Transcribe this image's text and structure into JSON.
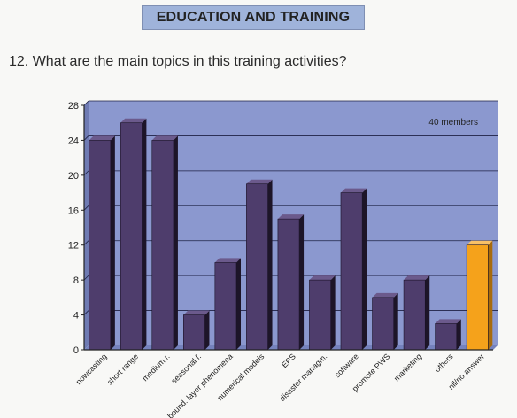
{
  "header": {
    "title": "EDUCATION AND TRAINING"
  },
  "question": "12. What are the main topics in this training activities?",
  "colors": {
    "plot_background": "#8b98cf",
    "bar_fill": "#4e3d6c",
    "highlight_fill": "#f5a21b",
    "header_background": "#9fb3da"
  },
  "chart_data": {
    "type": "bar",
    "title": "",
    "xlabel": "",
    "ylabel": "",
    "ylim": [
      0,
      28
    ],
    "yticks": [
      0,
      4,
      8,
      12,
      16,
      20,
      24,
      28
    ],
    "grid": true,
    "annotation": "40 members",
    "categories": [
      "nowcasting",
      "short range",
      "medium r.",
      "seasonal f.",
      "bound. layer phenomena",
      "numerical models",
      "EPS",
      "disaster managm.",
      "software",
      "promote PWS",
      "marketing",
      "others",
      "nil/no answer"
    ],
    "values": [
      24,
      26,
      24,
      4,
      10,
      19,
      15,
      8,
      18,
      6,
      8,
      3,
      12
    ],
    "highlight_categories": [
      "nil/no answer"
    ]
  }
}
